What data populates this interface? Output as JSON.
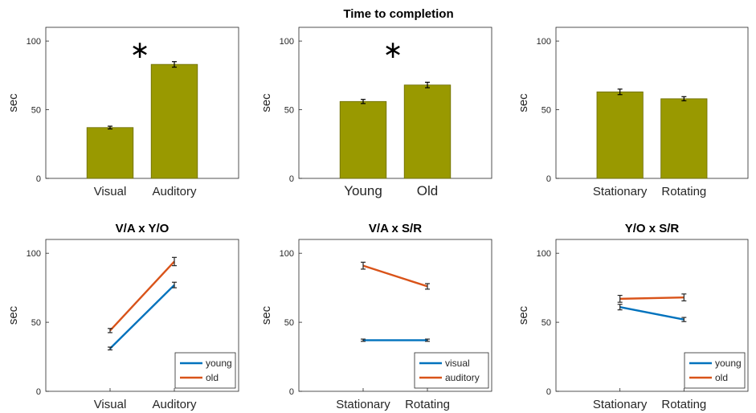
{
  "figure_title": "Time to completion",
  "chart_data": [
    {
      "type": "bar",
      "title": "",
      "ylabel": "sec",
      "ylim": [
        0,
        110
      ],
      "yticks": [
        0,
        50,
        100
      ],
      "categories": [
        "Visual",
        "Auditory"
      ],
      "values": [
        37,
        83
      ],
      "errors": [
        1,
        2
      ],
      "significance": "∗",
      "bar_color": "#999900"
    },
    {
      "type": "bar",
      "title": "",
      "ylabel": "sec",
      "ylim": [
        0,
        110
      ],
      "yticks": [
        0,
        50,
        100
      ],
      "categories": [
        "Young",
        "Old"
      ],
      "values": [
        56,
        68
      ],
      "errors": [
        1.5,
        2
      ],
      "significance": "∗",
      "bar_color": "#999900"
    },
    {
      "type": "bar",
      "title": "",
      "ylabel": "sec",
      "ylim": [
        0,
        110
      ],
      "yticks": [
        0,
        50,
        100
      ],
      "categories": [
        "Stationary",
        "Rotating"
      ],
      "values": [
        63,
        58
      ],
      "errors": [
        2,
        1.5
      ],
      "significance": "",
      "bar_color": "#999900"
    },
    {
      "type": "line",
      "title": "V/A x Y/O",
      "ylabel": "sec",
      "ylim": [
        0,
        110
      ],
      "yticks": [
        0,
        50,
        100
      ],
      "categories": [
        "Visual",
        "Auditory"
      ],
      "legend_position": "bottom-right",
      "series": [
        {
          "name": "young",
          "values": [
            31,
            77
          ],
          "errors": [
            1,
            2
          ],
          "color": "#0072BD"
        },
        {
          "name": "old",
          "values": [
            44,
            94
          ],
          "errors": [
            1.5,
            3
          ],
          "color": "#D95319"
        }
      ]
    },
    {
      "type": "line",
      "title": "V/A x S/R",
      "ylabel": "sec",
      "ylim": [
        0,
        110
      ],
      "yticks": [
        0,
        50,
        100
      ],
      "categories": [
        "Stationary",
        "Rotating"
      ],
      "legend_position": "bottom-right",
      "series": [
        {
          "name": "visual",
          "values": [
            37,
            37
          ],
          "errors": [
            0.8,
            0.8
          ],
          "color": "#0072BD"
        },
        {
          "name": "auditory",
          "values": [
            91,
            76
          ],
          "errors": [
            2.5,
            2
          ],
          "color": "#D95319"
        }
      ]
    },
    {
      "type": "line",
      "title": "Y/O x S/R",
      "ylabel": "sec",
      "ylim": [
        0,
        110
      ],
      "yticks": [
        0,
        50,
        100
      ],
      "categories": [
        "Stationary",
        "Rotating"
      ],
      "legend_position": "bottom-right",
      "series": [
        {
          "name": "young",
          "values": [
            61,
            52
          ],
          "errors": [
            2,
            1.5
          ],
          "color": "#0072BD"
        },
        {
          "name": "old",
          "values": [
            67,
            68
          ],
          "errors": [
            2.5,
            2.5
          ],
          "color": "#D95319"
        }
      ]
    }
  ]
}
